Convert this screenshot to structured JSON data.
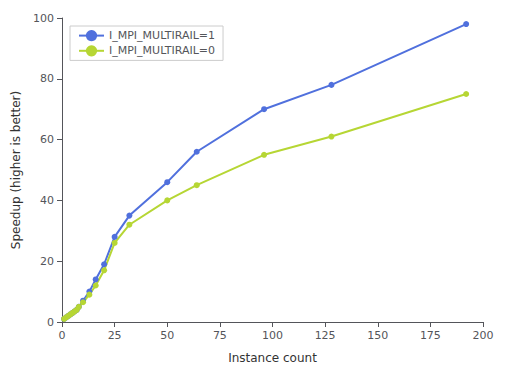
{
  "chart_data": {
    "type": "line",
    "xlabel": "Instance count",
    "ylabel": "Speedup (higher is better)",
    "series": [
      {
        "name": "I_MPI_MULTIRAIL=1",
        "x": [
          1,
          2,
          3,
          4,
          5,
          6,
          7,
          8,
          10,
          13,
          16,
          20,
          25,
          32,
          50,
          64,
          96,
          128,
          192
        ],
        "values": [
          1,
          1.5,
          2,
          2.5,
          3,
          3.5,
          4,
          5,
          7,
          10,
          14,
          19,
          28,
          35,
          46,
          56,
          70,
          78,
          98
        ]
      },
      {
        "name": "I_MPI_MULTIRAIL=0",
        "x": [
          1,
          2,
          3,
          4,
          5,
          6,
          7,
          8,
          10,
          13,
          16,
          20,
          25,
          32,
          50,
          64,
          96,
          128,
          192
        ],
        "values": [
          1,
          1.5,
          2,
          2.5,
          3,
          3.5,
          4,
          5,
          6.5,
          9,
          12,
          17,
          26,
          32,
          40,
          45,
          55,
          61,
          75
        ]
      }
    ],
    "xlim": [
      0,
      200
    ],
    "ylim": [
      0,
      100
    ],
    "xticks": [
      0,
      25,
      50,
      75,
      100,
      125,
      150,
      175,
      200
    ],
    "yticks": [
      0,
      20,
      40,
      60,
      80,
      100
    ],
    "marker": "circle",
    "legend": "upper left",
    "grid": false
  }
}
